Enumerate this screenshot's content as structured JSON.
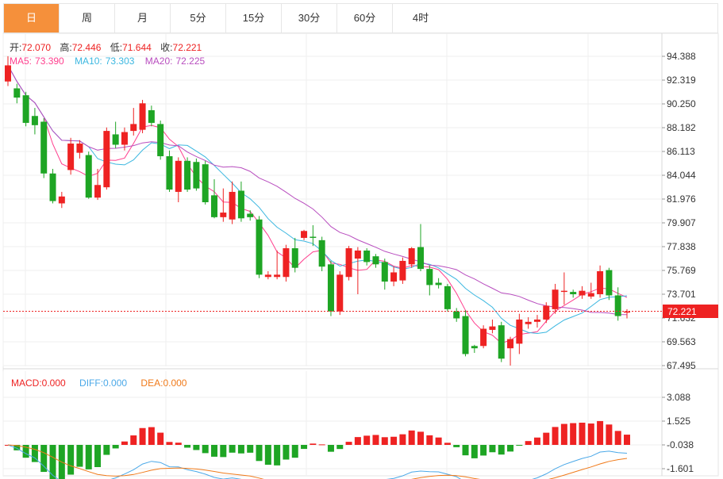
{
  "tabs": [
    "日",
    "周",
    "月",
    "5分",
    "15分",
    "30分",
    "60分",
    "4时"
  ],
  "active_tab": 0,
  "ohlc": {
    "open_label": "开:",
    "open": "72.070",
    "high_label": "高:",
    "high": "72.446",
    "low_label": "低:",
    "low": "71.644",
    "close_label": "收:",
    "close": "72.221"
  },
  "ma": {
    "ma5_label": "MA5:",
    "ma5": "73.390",
    "ma10_label": "MA10:",
    "ma10": "73.303",
    "ma20_label": "MA20:",
    "ma20": "72.225"
  },
  "macd": {
    "macd_label": "MACD:",
    "macd": "0.000",
    "diff_label": "DIFF:",
    "diff": "0.000",
    "dea_label": "DEA:",
    "dea": "0.000"
  },
  "price_box": "72.221",
  "colors": {
    "up": "#ee2222",
    "down": "#1ea524",
    "ma5": "#ff3f8e",
    "ma10": "#3bb7e0",
    "ma20": "#b84dbf",
    "diff": "#4aa8e8",
    "dea": "#f07a1a",
    "tab_active": "#f5903b"
  },
  "chart_data": {
    "type": "candlestick",
    "price_axis": {
      "ticks": [
        "94.388",
        "92.319",
        "90.250",
        "88.182",
        "86.113",
        "84.044",
        "81.976",
        "79.907",
        "77.838",
        "75.769",
        "73.701",
        "71.632",
        "69.563",
        "67.495"
      ],
      "min": 67.495,
      "max": 94.388
    },
    "macd_axis": {
      "ticks": [
        "3.088",
        "1.525",
        "-0.038",
        "-1.601"
      ]
    },
    "candles": [
      [
        92.2,
        93.6,
        91.8,
        94.4
      ],
      [
        91.6,
        90.8,
        90.3,
        92.0
      ],
      [
        91.0,
        88.6,
        88.3,
        91.3
      ],
      [
        89.2,
        88.4,
        87.6,
        89.9
      ],
      [
        88.7,
        84.2,
        83.8,
        89.0
      ],
      [
        84.2,
        81.8,
        81.6,
        84.6
      ],
      [
        81.6,
        82.2,
        81.2,
        82.6
      ],
      [
        84.5,
        86.8,
        84.1,
        87.3
      ],
      [
        86.0,
        86.8,
        85.5,
        87.1
      ],
      [
        85.8,
        82.1,
        82.0,
        86.1
      ],
      [
        82.1,
        83.2,
        81.9,
        84.6
      ],
      [
        83.0,
        87.9,
        82.8,
        88.2
      ],
      [
        87.6,
        86.7,
        86.4,
        88.7
      ],
      [
        86.7,
        87.8,
        86.2,
        88.2
      ],
      [
        87.9,
        88.5,
        87.5,
        89.9
      ],
      [
        88.0,
        90.3,
        87.7,
        90.6
      ],
      [
        89.7,
        88.6,
        88.3,
        90.1
      ],
      [
        88.5,
        85.7,
        85.4,
        88.8
      ],
      [
        85.7,
        82.8,
        82.6,
        86.2
      ],
      [
        82.6,
        85.3,
        81.7,
        85.6
      ],
      [
        85.3,
        82.8,
        82.6,
        85.6
      ],
      [
        85.2,
        82.9,
        82.7,
        85.5
      ],
      [
        85.0,
        81.7,
        81.5,
        85.3
      ],
      [
        82.3,
        80.4,
        80.3,
        83.7
      ],
      [
        80.4,
        80.8,
        80.0,
        82.9
      ],
      [
        80.2,
        82.6,
        79.8,
        83.5
      ],
      [
        82.7,
        80.3,
        80.0,
        83.5
      ],
      [
        80.7,
        80.4,
        80.1,
        81.0
      ],
      [
        80.2,
        75.4,
        75.1,
        80.5
      ],
      [
        75.2,
        75.4,
        75.0,
        75.7
      ],
      [
        75.2,
        75.4,
        75.0,
        77.5
      ],
      [
        75.2,
        77.7,
        74.8,
        78.0
      ],
      [
        77.7,
        76.0,
        75.6,
        78.6
      ],
      [
        78.6,
        79.2,
        78.4,
        79.3
      ],
      [
        78.7,
        78.6,
        77.9,
        79.7
      ],
      [
        78.4,
        76.1,
        75.7,
        78.7
      ],
      [
        76.3,
        72.2,
        71.8,
        76.6
      ],
      [
        72.2,
        75.4,
        71.9,
        75.7
      ],
      [
        75.2,
        77.7,
        74.9,
        77.9
      ],
      [
        76.8,
        77.5,
        73.7,
        77.8
      ],
      [
        77.5,
        76.5,
        76.2,
        77.7
      ],
      [
        77.0,
        76.3,
        76.0,
        77.2
      ],
      [
        76.5,
        74.8,
        74.1,
        76.8
      ],
      [
        74.8,
        75.6,
        74.4,
        76.1
      ],
      [
        74.9,
        76.6,
        74.6,
        76.9
      ],
      [
        76.3,
        77.7,
        76.0,
        77.8
      ],
      [
        77.8,
        75.9,
        75.7,
        79.8
      ],
      [
        75.9,
        74.5,
        73.6,
        76.2
      ],
      [
        74.7,
        74.5,
        74.2,
        75.1
      ],
      [
        74.4,
        72.4,
        72.2,
        74.6
      ],
      [
        72.2,
        71.6,
        71.3,
        72.5
      ],
      [
        71.8,
        68.5,
        68.3,
        72.3
      ],
      [
        69.2,
        69.0,
        68.6,
        69.3
      ],
      [
        69.2,
        70.7,
        69.0,
        71.0
      ],
      [
        70.6,
        70.9,
        70.3,
        71.5
      ],
      [
        71.0,
        68.1,
        67.8,
        71.3
      ],
      [
        69.0,
        69.8,
        67.5,
        70.0
      ],
      [
        69.4,
        71.5,
        68.5,
        72.0
      ],
      [
        71.1,
        71.3,
        70.7,
        71.7
      ],
      [
        71.3,
        71.5,
        70.8,
        71.9
      ],
      [
        71.5,
        72.7,
        71.2,
        73.0
      ],
      [
        72.4,
        74.1,
        72.0,
        74.6
      ],
      [
        73.9,
        74.0,
        72.8,
        75.6
      ],
      [
        73.9,
        73.7,
        73.4,
        74.1
      ],
      [
        73.6,
        74.0,
        73.3,
        74.4
      ],
      [
        73.5,
        73.8,
        73.3,
        74.7
      ],
      [
        73.7,
        75.7,
        73.4,
        76.2
      ],
      [
        75.8,
        73.6,
        73.2,
        76.0
      ],
      [
        73.6,
        71.8,
        71.4,
        74.3
      ],
      [
        72.1,
        72.2,
        71.6,
        72.4
      ]
    ]
  }
}
